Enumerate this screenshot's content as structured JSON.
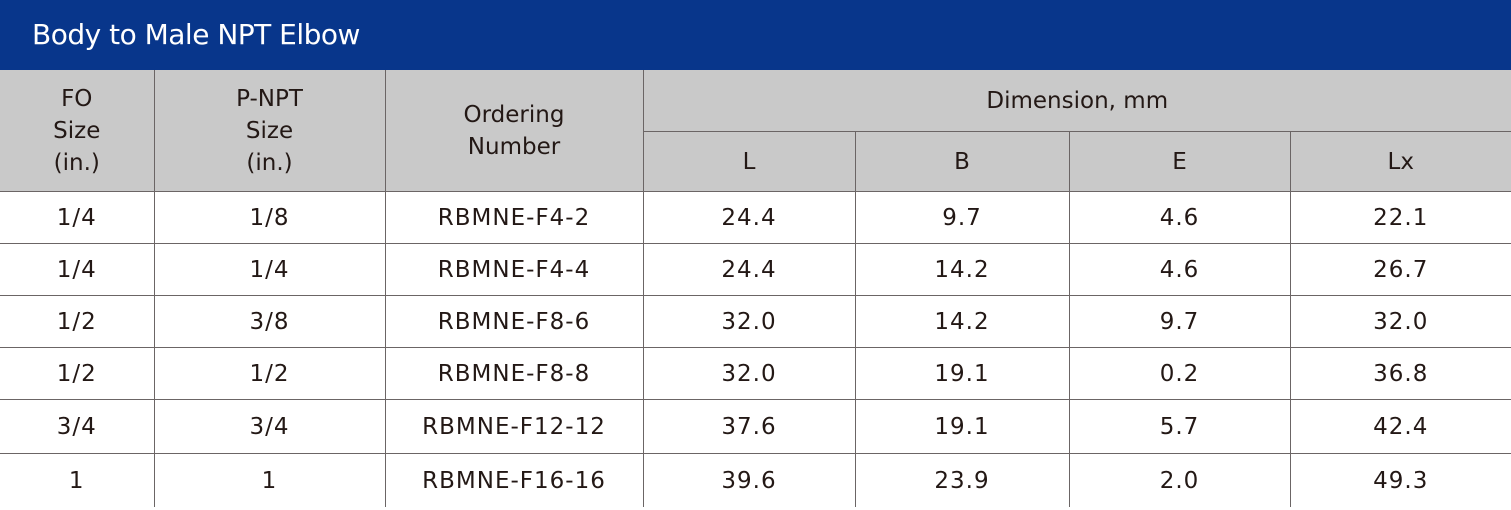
{
  "title": "Body to Male NPT Elbow",
  "headers": {
    "fo_size": [
      "FO",
      "Size",
      "(in.)"
    ],
    "pnpt_size": [
      "P-NPT",
      "Size",
      "(in.)"
    ],
    "ordering": [
      "Ordering",
      "Number"
    ],
    "dimension": "Dimension, mm",
    "sub": [
      "L",
      "B",
      "E",
      "Lx"
    ]
  },
  "colors": {
    "title_bar": "#08368b",
    "header_bg": "#c9c9c9",
    "text": "#231815"
  },
  "rows": [
    [
      "1/4",
      "1/8",
      "RBMNE-F4-2",
      "24.4",
      "9.7",
      "4.6",
      "22.1"
    ],
    [
      "1/4",
      "1/4",
      "RBMNE-F4-4",
      "24.4",
      "14.2",
      "4.6",
      "26.7"
    ],
    [
      "1/2",
      "3/8",
      "RBMNE-F8-6",
      "32.0",
      "14.2",
      "9.7",
      "32.0"
    ],
    [
      "1/2",
      "1/2",
      "RBMNE-F8-8",
      "32.0",
      "19.1",
      "0.2",
      "36.8"
    ],
    [
      "3/4",
      "3/4",
      "RBMNE-F12-12",
      "37.6",
      "19.1",
      "5.7",
      "42.4"
    ],
    [
      "1",
      "1",
      "RBMNE-F16-16",
      "39.6",
      "23.9",
      "2.0",
      "49.3"
    ]
  ]
}
